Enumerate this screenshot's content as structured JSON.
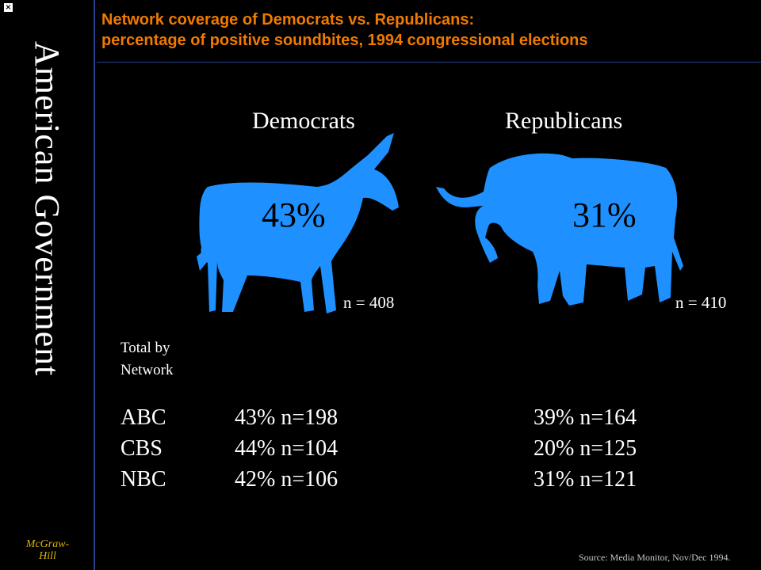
{
  "sidebar": {
    "title": "American Government",
    "publisher_line1": "McGraw-",
    "publisher_line2": "Hill"
  },
  "slide": {
    "title_line1": "Network coverage of Democrats vs. Republicans:",
    "title_line2": "percentage of positive soundbites, 1994 congressional elections",
    "colors": {
      "title": "#f07a00",
      "animal": "#1e90ff",
      "background": "#000000",
      "publisher": "#d9b400"
    }
  },
  "parties": {
    "democrats": {
      "label": "Democrats",
      "percent": "43%",
      "n": "n = 408",
      "icon": "donkey-icon"
    },
    "republicans": {
      "label": "Republicans",
      "percent": "31%",
      "n": "n = 410",
      "icon": "elephant-icon"
    }
  },
  "network_table": {
    "header_line1": "Total by",
    "header_line2": "Network",
    "rows": [
      {
        "network": "ABC",
        "dem": "43% n=198",
        "rep": "39% n=164"
      },
      {
        "network": "CBS",
        "dem": "44% n=104",
        "rep": "20% n=125"
      },
      {
        "network": "NBC",
        "dem": "42% n=106",
        "rep": "31% n=121"
      }
    ]
  },
  "source": "Source: Media Monitor, Nov/Dec 1994."
}
